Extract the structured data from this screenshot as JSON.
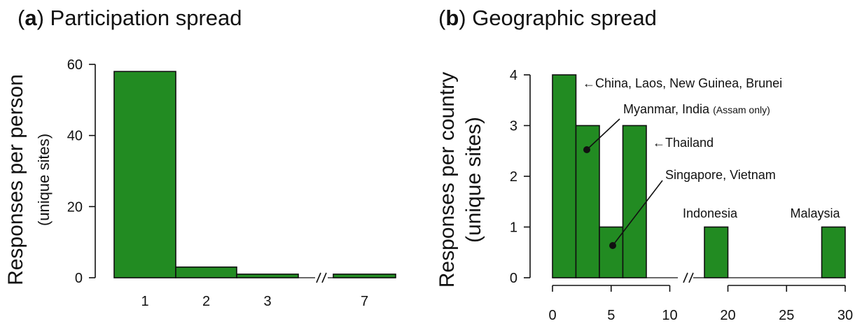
{
  "chart_data": [
    {
      "type": "bar",
      "panel_letter": "a",
      "title": "Participation spread",
      "ylabel": "Responses per person",
      "ylabel_sub": "(unique sites)",
      "categories": [
        "1",
        "2",
        "3",
        "7"
      ],
      "values": [
        58,
        3,
        1,
        1
      ],
      "ylim": [
        0,
        60
      ],
      "yticks": [
        0,
        20,
        40,
        60
      ],
      "axis_break": "between 3 and 7",
      "grid": false,
      "colors": {
        "bar": "#228B22"
      }
    },
    {
      "type": "bar",
      "panel_letter": "b",
      "title": "Geographic spread",
      "ylabel": "Responses per country",
      "ylabel_sub": "(unique sites)",
      "bins": [
        {
          "x0": 0,
          "x1": 2,
          "value": 4
        },
        {
          "x0": 2,
          "x1": 4,
          "value": 3
        },
        {
          "x0": 4,
          "x1": 6,
          "value": 1
        },
        {
          "x0": 6,
          "x1": 8,
          "value": 3
        },
        {
          "x0": 18,
          "x1": 20,
          "value": 1
        },
        {
          "x0": 28,
          "x1": 30,
          "value": 1
        }
      ],
      "xlim": [
        0,
        30
      ],
      "xticks_left": [
        0,
        5,
        10
      ],
      "xticks_right": [
        20,
        25,
        30
      ],
      "axis_break": "between 10 and 18",
      "ylim": [
        0,
        4
      ],
      "yticks": [
        0,
        1,
        2,
        3,
        4
      ],
      "grid": false,
      "colors": {
        "bar": "#228B22"
      },
      "annotations": [
        {
          "id": "china",
          "text": "China, Laos, New Guinea, Brunei",
          "arrow": "←",
          "points_to_x": 1,
          "points_to_y": 4
        },
        {
          "id": "myanmar",
          "text": "Myanmar, India",
          "small": "(Assam only)",
          "points_to_x": 3,
          "points_to_y": 2.5
        },
        {
          "id": "thailand",
          "text": "Thailand",
          "arrow": "←",
          "points_to_x": 7,
          "points_to_y": 2.7
        },
        {
          "id": "singapore",
          "text": "Singapore, Vietnam",
          "points_to_x": 5,
          "points_to_y": 0.65
        },
        {
          "id": "indonesia",
          "text": "Indonesia"
        },
        {
          "id": "malaysia",
          "text": "Malaysia"
        }
      ]
    }
  ]
}
